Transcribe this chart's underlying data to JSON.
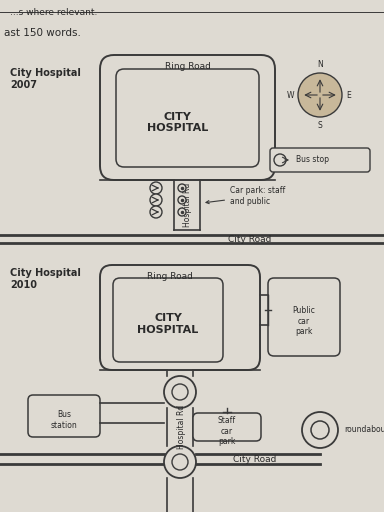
{
  "bg_color": "#dedad2",
  "line_color": "#3a3a3a",
  "text_color": "#2a2a2a",
  "map1_title": "City Hospital\n2007",
  "map2_title": "City Hospital\n2010",
  "ring_road_label": "Ring Road",
  "city_hospital_label": "CITY\nHOSPITAL",
  "hospital_rd_label": "Hospital Rd",
  "city_road_label": "City Road",
  "car_park_staff_label": "Car park: staff\nand public",
  "bus_stop_label": "Bus stop",
  "public_car_park_label": "Public\ncar\npark",
  "staff_car_park_label": "Staff\ncar\npark",
  "bus_station_label": "Bus\nstation",
  "roundabout_label": "roundabout",
  "top_text": "...s where relevant.",
  "prompt_text": "ast 150 words."
}
